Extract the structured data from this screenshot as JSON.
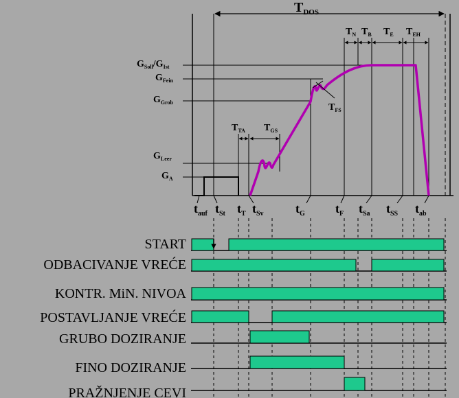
{
  "colors": {
    "background": "#a8a8a8",
    "weight_curve": "#b000b0",
    "signal_fill": "#1ec98d",
    "line": "#000000"
  },
  "timing": {
    "t_dos": {
      "main": "T",
      "sub": "DOS"
    },
    "intervals": [
      {
        "main": "T",
        "sub": "TA"
      },
      {
        "main": "T",
        "sub": "GS"
      },
      {
        "main": "T",
        "sub": "N"
      },
      {
        "main": "T",
        "sub": "B"
      },
      {
        "main": "T",
        "sub": "E"
      },
      {
        "main": "T",
        "sub": "EH"
      },
      {
        "main": "T",
        "sub": "FS"
      }
    ],
    "weight_levels": [
      {
        "main": "G",
        "sub": "Soll",
        "main2": "/G",
        "sub2": "Ist"
      },
      {
        "main": "G",
        "sub": "Fein"
      },
      {
        "main": "G",
        "sub": "Grob"
      },
      {
        "main": "G",
        "sub": "Leer"
      },
      {
        "main": "G",
        "sub": "A"
      }
    ],
    "time_marks": [
      {
        "main": "t",
        "sub": "auf"
      },
      {
        "main": "t",
        "sub": "St"
      },
      {
        "main": "t",
        "sub": "T"
      },
      {
        "main": "t",
        "sub": "Sv"
      },
      {
        "main": "t",
        "sub": "G"
      },
      {
        "main": "t",
        "sub": "F"
      },
      {
        "main": "t",
        "sub": "Sa"
      },
      {
        "main": "t",
        "sub": "SS"
      },
      {
        "main": "t",
        "sub": "ab"
      }
    ]
  },
  "signals": [
    {
      "label": "START"
    },
    {
      "label": "ODBACIVANJE VREĆE"
    },
    {
      "label": "KONTR. MiN. NIVOA"
    },
    {
      "label": "POSTAVLJANJE VREĆE"
    },
    {
      "label": "GRUBO DOZIRANJE"
    },
    {
      "label": "FINO DOZIRANJE"
    },
    {
      "label": "PRAŽNJENJE CEVI"
    }
  ]
}
